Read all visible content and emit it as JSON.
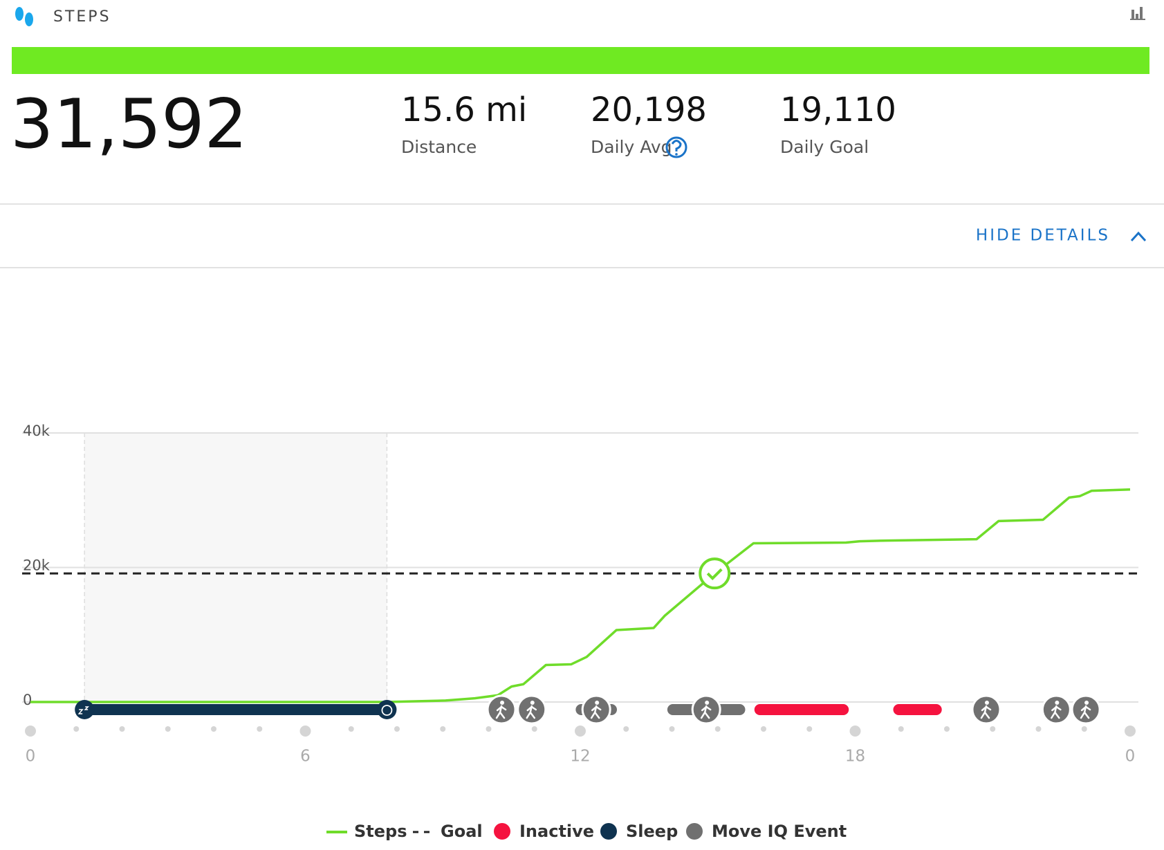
{
  "header": {
    "title": "STEPS"
  },
  "summary": {
    "total": "31,592",
    "stats": [
      {
        "value": "15.6 mi",
        "label": "Distance"
      },
      {
        "value": "20,198",
        "label": "Daily Avg"
      },
      {
        "value": "19,110",
        "label": "Daily Goal"
      }
    ]
  },
  "toggle": "HIDE DETAILS",
  "chart_data": {
    "type": "line",
    "xlim": [
      0,
      24
    ],
    "xticks": [
      0,
      6,
      12,
      18,
      {
        "value": 24,
        "label": "0"
      }
    ],
    "minor_xticks": [
      1,
      2,
      3,
      4,
      5,
      7,
      8,
      9,
      10,
      11,
      13,
      14,
      15,
      16,
      17,
      19,
      20,
      21,
      22,
      23
    ],
    "ylim": [
      0,
      40000
    ],
    "yticks": [
      {
        "value": 0,
        "label": "0"
      },
      {
        "value": 20000,
        "label": "20k"
      },
      {
        "value": 40000,
        "label": "40k"
      }
    ],
    "grid": true,
    "series": [
      {
        "name": "Steps",
        "color": "#6fdc2a",
        "x": [
          0,
          7.76,
          9.06,
          9.7,
          10.2,
          10.5,
          10.76,
          11.25,
          11.8,
          12.14,
          12.79,
          13.6,
          13.84,
          14.93,
          15.78,
          17.8,
          18.1,
          18.7,
          20.65,
          21.13,
          22.1,
          22.67,
          22.9,
          23.16,
          24
        ],
        "values": [
          0,
          0,
          220,
          550,
          1000,
          2300,
          2650,
          5500,
          5600,
          6700,
          10700,
          11000,
          12800,
          19100,
          23600,
          23700,
          23900,
          24000,
          24200,
          26900,
          27100,
          30400,
          30600,
          31400,
          31592
        ]
      }
    ],
    "goal": {
      "name": "Goal",
      "value": 19110
    },
    "inactive": {
      "name": "Inactive",
      "color": "#f5133f",
      "events": [
        {
          "start": 15.8,
          "end": 17.86
        },
        {
          "start": 18.83,
          "end": 19.89
        }
      ]
    },
    "sleep": {
      "name": "Sleep",
      "color": "#0f3350",
      "events": [
        {
          "start": 1.18,
          "end": 7.78
        }
      ]
    },
    "move_iq": {
      "name": "Move IQ Event",
      "color": "#707070",
      "events": [
        {
          "start": 10.28,
          "end": 10.28
        },
        {
          "start": 10.94,
          "end": 10.94
        },
        {
          "start": 11.9,
          "end": 12.8
        },
        {
          "start": 13.9,
          "end": 15.6
        },
        {
          "start": 20.86,
          "end": 20.86
        },
        {
          "start": 22.08,
          "end": 22.7
        },
        {
          "start": 22.75,
          "end": 23.32
        }
      ]
    }
  }
}
